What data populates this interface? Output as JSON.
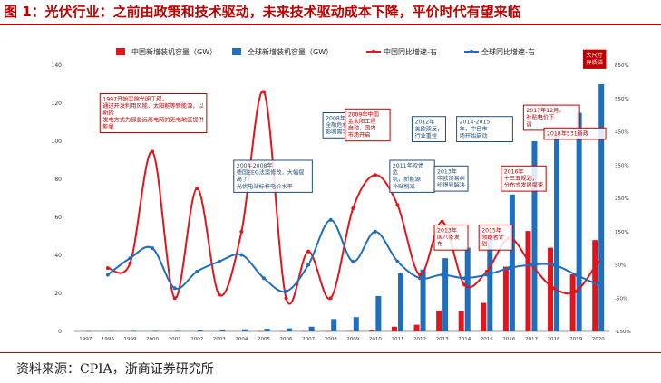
{
  "header": {
    "title": "图 1：光伏行业：之前由政策和技术驱动，未来技术驱动成本下降，平价时代有望来临"
  },
  "footer": {
    "source": "资料来源：CPIA，浙商证券研究所"
  },
  "chart_data": {
    "type": "bar+line",
    "categories": [
      "1997",
      "1998",
      "1999",
      "2000",
      "2001",
      "2002",
      "2003",
      "2004",
      "2005",
      "2006",
      "2007",
      "2008",
      "2009",
      "2010",
      "2011",
      "2012",
      "2013",
      "2014",
      "2015",
      "2016",
      "2017",
      "2018",
      "2019",
      "2020"
    ],
    "series": [
      {
        "name": "中国新增装机容量（GW）",
        "type": "bar",
        "axis": "left",
        "color": "#e3141b",
        "values": [
          0,
          0,
          0,
          0,
          0,
          0,
          0,
          0,
          0.1,
          0.1,
          0.1,
          0.1,
          0.2,
          0.5,
          2.5,
          3.5,
          11,
          10.6,
          15,
          34,
          52.8,
          44,
          30,
          48
        ]
      },
      {
        "name": "全球新增装机容量（GW）",
        "type": "bar",
        "axis": "left",
        "color": "#1f6fbf",
        "values": [
          0.1,
          0.2,
          0.3,
          0.3,
          0.3,
          0.5,
          0.6,
          1.1,
          1.4,
          1.6,
          2.5,
          6.5,
          7.5,
          18.6,
          30.5,
          32.5,
          38.5,
          44,
          51,
          72,
          100,
          104,
          115,
          130
        ]
      },
      {
        "name": "中国同比增速-右",
        "type": "line",
        "axis": "right",
        "color": "#e3141b",
        "values": [
          null,
          40,
          55,
          390,
          -50,
          280,
          -40,
          150,
          570,
          -50,
          90,
          -50,
          220,
          320,
          230,
          20,
          180,
          -10,
          30,
          130,
          50,
          -20,
          -30,
          60
        ]
      },
      {
        "name": "全球同比增速-右",
        "type": "line",
        "axis": "right",
        "color": "#1f6fbf",
        "values": [
          null,
          20,
          70,
          100,
          -20,
          30,
          60,
          80,
          10,
          -30,
          50,
          185,
          60,
          150,
          60,
          10,
          20,
          10,
          20,
          40,
          50,
          50,
          20,
          -10
        ]
      }
    ],
    "yleft": {
      "min": 0,
      "max": 140,
      "ticks": [
        "0",
        "20",
        "40",
        "60",
        "80",
        "100",
        "120",
        "140"
      ]
    },
    "yright": {
      "min": -150,
      "max": 650,
      "ticks": [
        "-150%",
        "-50%",
        "50%",
        "150%",
        "250%",
        "350%",
        "450%",
        "550%",
        "650%"
      ]
    },
    "legend": {
      "position": "top"
    },
    "annotations": [
      {
        "text": [
          "1997开始实施光明工程，",
          "通过开发利用风能、太阳能等新能源，以",
          "新的",
          "发电方式为那些远离电网的无电地区提供",
          "能量"
        ],
        "color": "#c00000",
        "anchor_year": "1998",
        "anchor_y": 125
      },
      {
        "text": [
          "2004-2008年",
          "德国EEG法案修改，大幅提",
          "高了",
          "光伏电站标杆电价水平"
        ],
        "color": "#1f4e79",
        "anchor_year": "2004",
        "anchor_y": 90
      },
      {
        "text": [
          "2008年",
          "全融危机",
          "影响需求"
        ],
        "color": "#1f4e79",
        "anchor_year": "2008",
        "anchor_y": 115
      },
      {
        "text": [
          "2009年中国",
          "金太阳工程",
          "启动，国内",
          "市场开启"
        ],
        "color": "#c00000",
        "anchor_year": "2009",
        "anchor_y": 117
      },
      {
        "text": [
          "2011年欧债",
          "危",
          "机，新能源",
          "补贴削减"
        ],
        "color": "#1f4e79",
        "anchor_year": "2011",
        "anchor_y": 90
      },
      {
        "text": [
          "2012年",
          "美欧双反，",
          "行业重挫"
        ],
        "color": "#1f4e79",
        "anchor_year": "2012",
        "anchor_y": 113
      },
      {
        "text": [
          "2013年",
          "中欧贸易纠",
          "纷得到解决"
        ],
        "color": "#1f4e79",
        "anchor_year": "2013",
        "anchor_y": 87
      },
      {
        "text": [
          "2014-2015",
          "年，中日市",
          "场开始启动"
        ],
        "color": "#1f4e79",
        "anchor_year": "2014",
        "anchor_y": 113
      },
      {
        "text": [
          "2013年",
          "国八条发",
          "布"
        ],
        "color": "#c00000",
        "anchor_year": "2013",
        "anchor_y": 56
      },
      {
        "text": [
          "2015年",
          "领跑者计",
          "划"
        ],
        "color": "#c00000",
        "anchor_year": "2015",
        "anchor_y": 56
      },
      {
        "text": [
          "2016年",
          "十三五规划，",
          "分布式发展提速"
        ],
        "color": "#c00000",
        "anchor_year": "2016",
        "anchor_y": 87
      },
      {
        "text": [
          "2017年12月，",
          "补贴电价下",
          "调"
        ],
        "color": "#c00000",
        "anchor_year": "2017",
        "anchor_y": 119
      },
      {
        "text": [
          "2018年531新政"
        ],
        "color": "#c00000",
        "anchor_year": "2018",
        "anchor_y": 107
      },
      {
        "text": [
          "大尺寸",
          "异质结"
        ],
        "color": "#c00000",
        "anchor_year": "2020",
        "anchor_y": 148
      }
    ]
  }
}
